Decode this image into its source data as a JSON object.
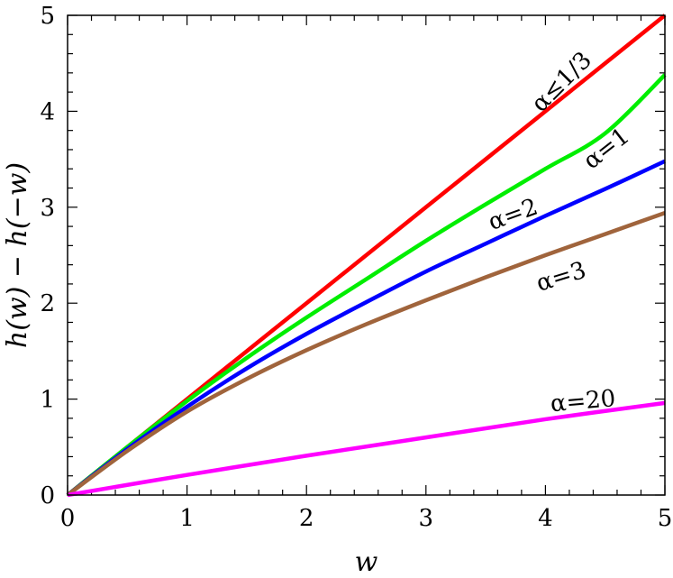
{
  "chart_data": {
    "type": "line",
    "title": "",
    "xlabel": "w",
    "ylabel": "h(w) − h(−w)",
    "xlim": [
      0,
      5
    ],
    "ylim": [
      0,
      5
    ],
    "xticks": [
      "0",
      "1",
      "2",
      "3",
      "4",
      "5"
    ],
    "yticks": [
      "0",
      "1",
      "2",
      "3",
      "4",
      "5"
    ],
    "grid": false,
    "legend": "none",
    "series": [
      {
        "name": "α≤1/3",
        "color": "#ff0000",
        "x": [
          0,
          1,
          2,
          3,
          4,
          5
        ],
        "y": [
          0,
          1,
          2,
          3,
          4,
          5
        ]
      },
      {
        "name": "α=1",
        "color": "#00ee00",
        "x": [
          0,
          0.5,
          1,
          1.5,
          2,
          2.5,
          3,
          3.5,
          4,
          4.5,
          5
        ],
        "y": [
          0,
          0.5,
          0.98,
          1.43,
          1.85,
          2.25,
          2.65,
          3.03,
          3.4,
          3.77,
          4.38
        ]
      },
      {
        "name": "α=2",
        "color": "#0000ff",
        "x": [
          0,
          0.5,
          1,
          1.5,
          2,
          2.5,
          3,
          3.5,
          4,
          4.5,
          5
        ],
        "y": [
          0,
          0.48,
          0.92,
          1.32,
          1.68,
          2.01,
          2.33,
          2.62,
          2.91,
          3.19,
          3.48
        ]
      },
      {
        "name": "α=3",
        "color": "#a0643c",
        "x": [
          0,
          0.5,
          1,
          1.5,
          2,
          2.5,
          3,
          3.5,
          4,
          4.5,
          5
        ],
        "y": [
          0,
          0.46,
          0.87,
          1.21,
          1.51,
          1.78,
          2.03,
          2.27,
          2.5,
          2.72,
          2.94
        ]
      },
      {
        "name": "α=20",
        "color": "#ff00ff",
        "x": [
          0,
          1,
          2,
          3,
          4,
          5
        ],
        "y": [
          0,
          0.21,
          0.41,
          0.6,
          0.79,
          0.96
        ]
      }
    ]
  }
}
